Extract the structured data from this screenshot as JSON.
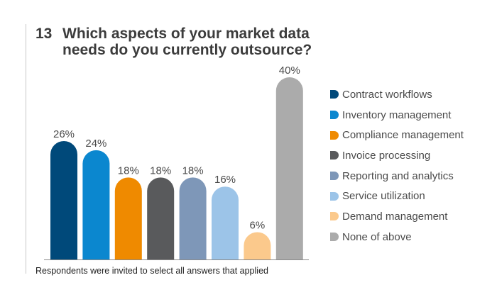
{
  "title": {
    "number": "13",
    "text": "Which aspects of your market data needs do you currently outsource?"
  },
  "footnote": "Respondents were invited to select all answers that applied",
  "chart_data": {
    "type": "bar",
    "title": "13 Which aspects of your market data needs do you currently outsource?",
    "xlabel": "",
    "ylabel": "",
    "ylim": [
      0,
      40
    ],
    "grid": false,
    "legend_position": "right",
    "value_suffix": "%",
    "categories": [
      "Contract workflows",
      "Inventory management",
      "Compliance management",
      "Invoice processing",
      "Reporting and analytics",
      "Service utilization",
      "Demand management",
      "None of above"
    ],
    "values": [
      26,
      24,
      18,
      18,
      18,
      16,
      6,
      40
    ],
    "labels": [
      "26%",
      "24%",
      "18%",
      "18%",
      "18%",
      "16%",
      "6%",
      "40%"
    ],
    "colors": [
      "#00497a",
      "#0b87cf",
      "#ef8a00",
      "#595a5c",
      "#7e97b8",
      "#9cc4e8",
      "#fbc98c",
      "#ababab"
    ]
  }
}
